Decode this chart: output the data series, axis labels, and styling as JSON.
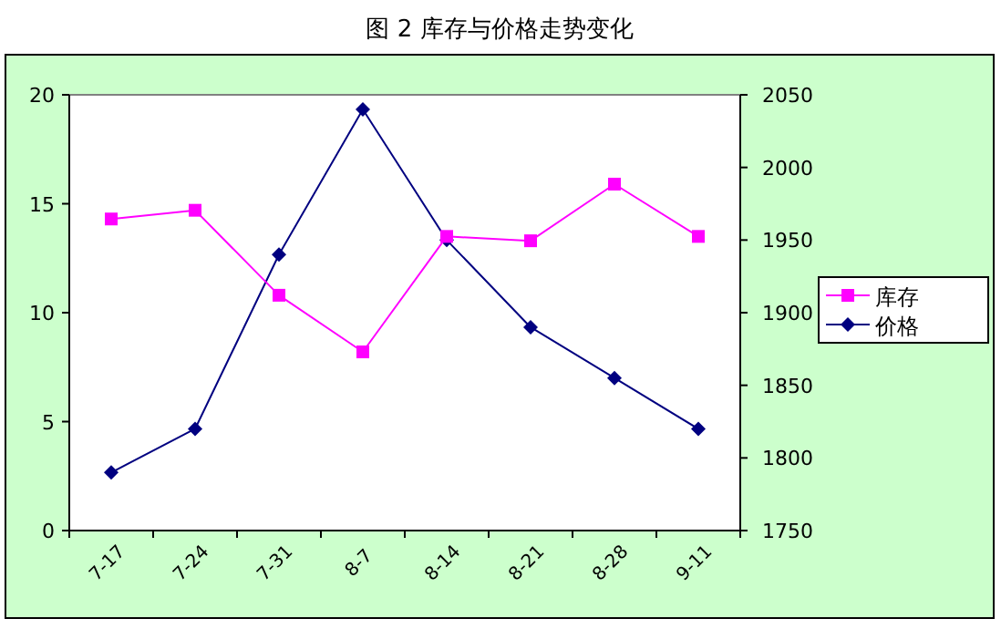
{
  "chart_data": {
    "type": "line",
    "title": "图 2 库存与价格走势变化",
    "categories": [
      "7-17",
      "7-24",
      "7-31",
      "8-7",
      "8-14",
      "8-21",
      "8-28",
      "9-11"
    ],
    "series": [
      {
        "name": "库存",
        "color": "#ff00ff",
        "marker": "square",
        "values": [
          14.3,
          14.7,
          10.8,
          8.2,
          13.5,
          13.3,
          15.9,
          13.5
        ]
      },
      {
        "name": "价格",
        "color": "#000080",
        "marker": "diamond",
        "axis": "y2",
        "values": [
          1790,
          1820,
          1940,
          2040,
          1950,
          1890,
          1855,
          1820
        ]
      }
    ],
    "ylim": [
      0,
      20
    ],
    "yticks": [
      0,
      5,
      10,
      15,
      20
    ],
    "y2lim": [
      1750,
      2050
    ],
    "y2ticks": [
      1750,
      1800,
      1850,
      1900,
      1950,
      2000,
      2050
    ],
    "legend": "right",
    "grid": false
  }
}
